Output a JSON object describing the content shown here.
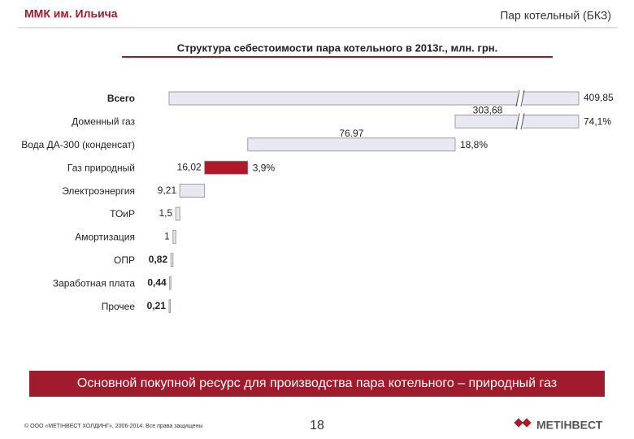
{
  "header": {
    "left": "ММК им. Ильича",
    "right": "Пар котельный (БКЗ)"
  },
  "chart_data": {
    "type": "waterfall",
    "title": "Структура себестоимости пара котельного в 2013г., млн. грн.",
    "categories": [
      "Всего",
      "Доменный газ",
      "Вода ДА-300 (конденсат)",
      "Газ природный",
      "Электроэнергия",
      "ТОиР",
      "Амортизация",
      "ОПР",
      "Заработная плата",
      "Прочее"
    ],
    "values": [
      409.85,
      303.68,
      76.97,
      16.02,
      9.21,
      1.5,
      1,
      0.82,
      0.44,
      0.21
    ],
    "value_labels": [
      "409,85",
      "303,68",
      "76.97",
      "16,02",
      "9,21",
      "1,5",
      "1",
      "0,82",
      "0,44",
      "0,21"
    ],
    "shares": [
      null,
      74.1,
      18.8,
      3.9,
      null,
      null,
      null,
      null,
      null,
      null
    ],
    "share_labels": [
      null,
      "74,1%",
      "18,8%",
      "3,9%",
      null,
      null,
      null,
      null,
      null,
      null
    ],
    "colors": [
      "#e8e8f2",
      "#e8e8f2",
      "#e8e8f2",
      "#b0182c",
      "#e8e8f2",
      "#e8e8f2",
      "#e8e8f2",
      "#e8e8f2",
      "#e8e8f2",
      "#e8e8f2"
    ],
    "axis_break": true
  },
  "banner": "Основной покупной ресурс для производства пара котельного – природный газ",
  "footer": {
    "copyright": "© ООО «МЕТІНВЕСТ ХОЛДИНГ», 2006-2014. Все права защищены",
    "page": "18",
    "logo": "МЕТІНВЕСТ"
  }
}
